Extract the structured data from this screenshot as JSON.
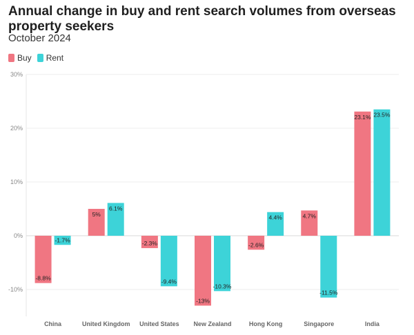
{
  "title": "Annual change in buy and rent search volumes from overseas property seekers",
  "subtitle": "October 2024",
  "colors": {
    "buy": "#f07682",
    "rent": "#3dd3d8"
  },
  "chart_data": {
    "type": "bar",
    "categories": [
      "China",
      "United Kingdom",
      "United States",
      "New Zealand",
      "Hong Kong",
      "Singapore",
      "India"
    ],
    "series": [
      {
        "name": "Buy",
        "values": [
          -8.8,
          5,
          -2.3,
          -13,
          -2.6,
          4.7,
          23.1
        ],
        "labels": [
          "-8.8%",
          "5%",
          "-2.3%",
          "-13%",
          "-2.6%",
          "4.7%",
          "23.1%"
        ]
      },
      {
        "name": "Rent",
        "values": [
          -1.7,
          6.1,
          -9.4,
          -10.3,
          4.4,
          -11.5,
          23.5
        ],
        "labels": [
          "-1.7%",
          "6.1%",
          "-9.4%",
          "-10.3%",
          "4.4%",
          "-11.5%",
          "23.5%"
        ]
      }
    ],
    "ylim": [
      -15,
      30
    ],
    "yticks": [
      -10,
      0,
      10,
      20,
      30
    ],
    "ytick_labels": [
      "-10%",
      "0%",
      "10%",
      "20%",
      "30%"
    ],
    "legend_position": "top-left",
    "grid": true
  }
}
